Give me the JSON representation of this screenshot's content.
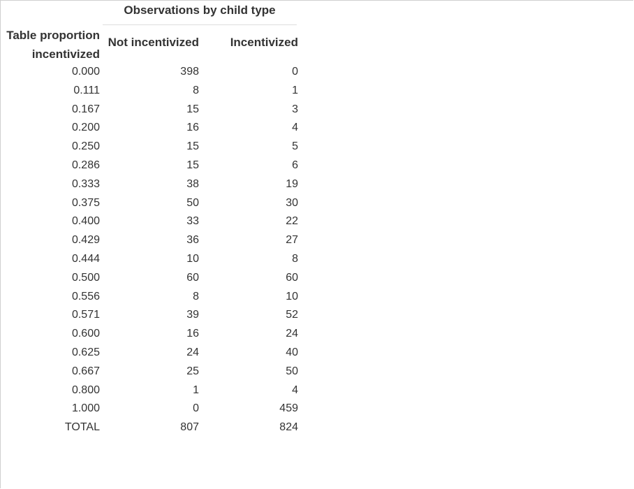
{
  "table": {
    "spanner_label": "Observations by child type",
    "stub_header": {
      "line1": "Table proportion",
      "line2": "incentivized"
    },
    "columns": [
      "Not incentivized",
      "Incentivized"
    ],
    "rows": [
      {
        "proportion": "0.000",
        "not_incentivized": "398",
        "incentivized": "0"
      },
      {
        "proportion": "0.111",
        "not_incentivized": "8",
        "incentivized": "1"
      },
      {
        "proportion": "0.167",
        "not_incentivized": "15",
        "incentivized": "3"
      },
      {
        "proportion": "0.200",
        "not_incentivized": "16",
        "incentivized": "4"
      },
      {
        "proportion": "0.250",
        "not_incentivized": "15",
        "incentivized": "5"
      },
      {
        "proportion": "0.286",
        "not_incentivized": "15",
        "incentivized": "6"
      },
      {
        "proportion": "0.333",
        "not_incentivized": "38",
        "incentivized": "19"
      },
      {
        "proportion": "0.375",
        "not_incentivized": "50",
        "incentivized": "30"
      },
      {
        "proportion": "0.400",
        "not_incentivized": "33",
        "incentivized": "22"
      },
      {
        "proportion": "0.429",
        "not_incentivized": "36",
        "incentivized": "27"
      },
      {
        "proportion": "0.444",
        "not_incentivized": "10",
        "incentivized": "8"
      },
      {
        "proportion": "0.500",
        "not_incentivized": "60",
        "incentivized": "60"
      },
      {
        "proportion": "0.556",
        "not_incentivized": "8",
        "incentivized": "10"
      },
      {
        "proportion": "0.571",
        "not_incentivized": "39",
        "incentivized": "52"
      },
      {
        "proportion": "0.600",
        "not_incentivized": "16",
        "incentivized": "24"
      },
      {
        "proportion": "0.625",
        "not_incentivized": "24",
        "incentivized": "40"
      },
      {
        "proportion": "0.667",
        "not_incentivized": "25",
        "incentivized": "50"
      },
      {
        "proportion": "0.800",
        "not_incentivized": "1",
        "incentivized": "4"
      },
      {
        "proportion": "1.000",
        "not_incentivized": "0",
        "incentivized": "459"
      },
      {
        "proportion": "TOTAL",
        "not_incentivized": "807",
        "incentivized": "824"
      }
    ]
  }
}
